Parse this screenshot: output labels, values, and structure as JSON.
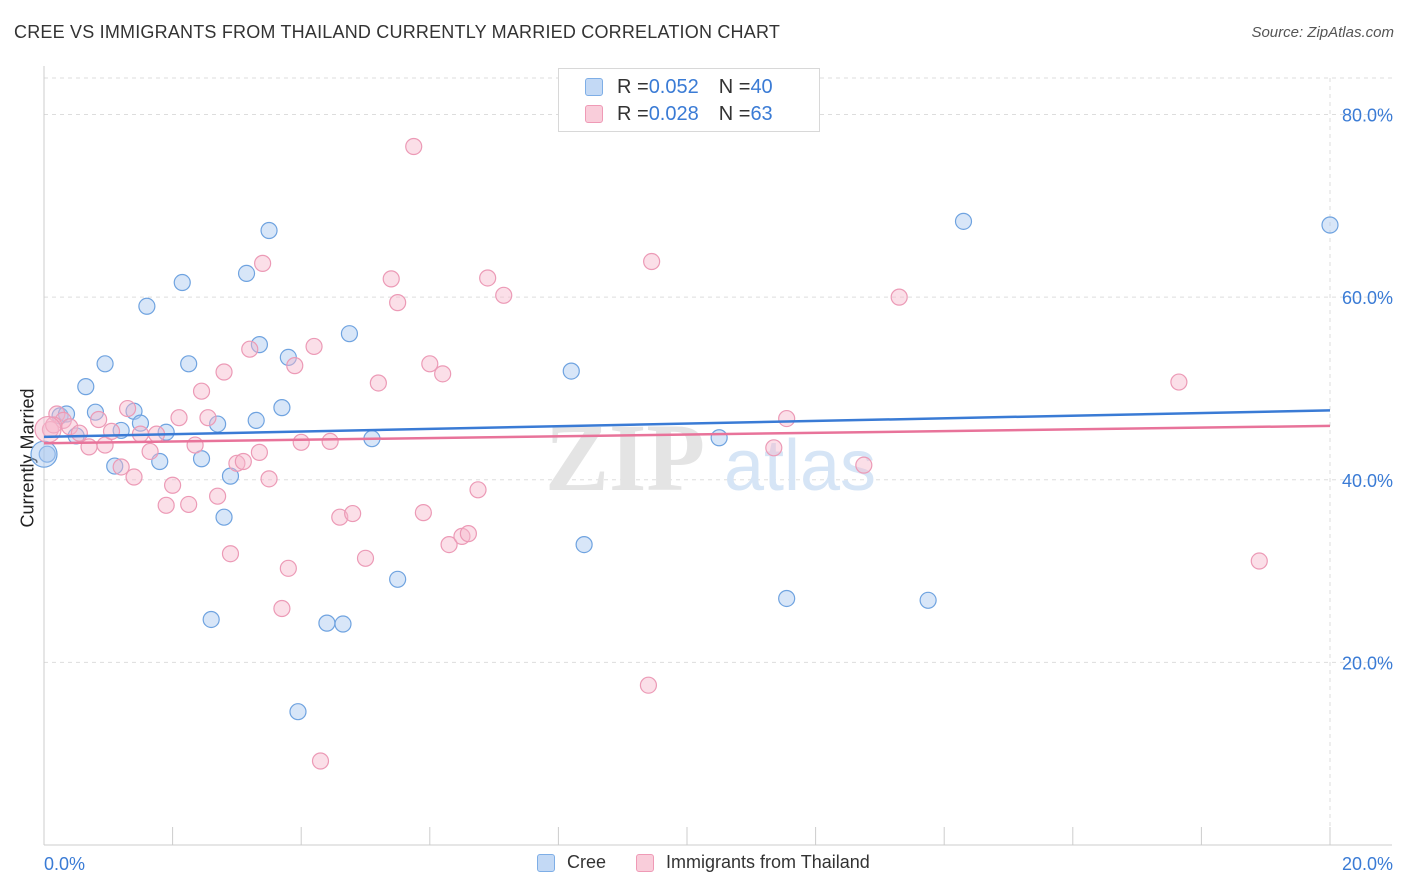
{
  "header": {
    "title": "CREE VS IMMIGRANTS FROM THAILAND CURRENTLY MARRIED CORRELATION CHART",
    "source": "Source: ZipAtlas.com"
  },
  "watermark": {
    "zip": "ZIP",
    "atlas": "atlas"
  },
  "legend_top": [
    {
      "r_label": "R = ",
      "r_value": "0.052",
      "n_label": "N = ",
      "n_value": "40",
      "color": "#a8c8f0"
    },
    {
      "r_label": "R = ",
      "r_value": "0.028",
      "n_label": "N = ",
      "n_value": "63",
      "color": "#f6b8cc"
    }
  ],
  "legend_bottom": [
    {
      "label": "Cree",
      "color": "#a8c8f0"
    },
    {
      "label": "Immigrants from Thailand",
      "color": "#f6b8cc"
    }
  ],
  "chart_data": {
    "type": "scatter",
    "title": "CREE VS IMMIGRANTS FROM THAILAND CURRENTLY MARRIED CORRELATION CHART",
    "ylabel": "Currently Married",
    "xlim": [
      0,
      20
    ],
    "ylim": [
      0,
      84
    ],
    "x_tick_labels": [
      {
        "value": 0,
        "label": "0.0%"
      },
      {
        "value": 20,
        "label": "20.0%"
      }
    ],
    "y_tick_labels": [
      {
        "value": 20,
        "label": "20.0%"
      },
      {
        "value": 40,
        "label": "40.0%"
      },
      {
        "value": 60,
        "label": "60.0%"
      },
      {
        "value": 80,
        "label": "80.0%"
      }
    ],
    "grid": true,
    "legend_position": "top-center",
    "colors": {
      "cree": "#3a7bd5",
      "thailand": "#e8739a",
      "cree_fill": "#a8c8f0",
      "thailand_fill": "#f6b8cc",
      "tick_label": "#3a7bd5"
    },
    "series": [
      {
        "name": "Cree",
        "r": 0.052,
        "n": 40,
        "trend": {
          "x": [
            0,
            20
          ],
          "y": [
            44.7,
            47.6
          ]
        },
        "points": [
          {
            "x": 0.05,
            "y": 42.8
          },
          {
            "x": 0.25,
            "y": 47.0
          },
          {
            "x": 0.35,
            "y": 47.2
          },
          {
            "x": 0.5,
            "y": 44.8
          },
          {
            "x": 0.65,
            "y": 50.2
          },
          {
            "x": 0.8,
            "y": 47.4
          },
          {
            "x": 0.95,
            "y": 52.7
          },
          {
            "x": 1.1,
            "y": 41.5
          },
          {
            "x": 1.2,
            "y": 45.4
          },
          {
            "x": 1.4,
            "y": 47.5
          },
          {
            "x": 1.5,
            "y": 46.2
          },
          {
            "x": 1.6,
            "y": 59.0
          },
          {
            "x": 1.8,
            "y": 42.0
          },
          {
            "x": 1.9,
            "y": 45.2
          },
          {
            "x": 2.15,
            "y": 61.6
          },
          {
            "x": 2.25,
            "y": 52.7
          },
          {
            "x": 2.45,
            "y": 42.3
          },
          {
            "x": 2.6,
            "y": 24.7
          },
          {
            "x": 2.7,
            "y": 46.1
          },
          {
            "x": 2.8,
            "y": 35.9
          },
          {
            "x": 2.9,
            "y": 40.4
          },
          {
            "x": 3.15,
            "y": 62.6
          },
          {
            "x": 3.3,
            "y": 46.5
          },
          {
            "x": 3.35,
            "y": 54.8
          },
          {
            "x": 3.5,
            "y": 67.3
          },
          {
            "x": 3.7,
            "y": 47.9
          },
          {
            "x": 3.8,
            "y": 53.4
          },
          {
            "x": 3.95,
            "y": 14.6
          },
          {
            "x": 4.4,
            "y": 24.3
          },
          {
            "x": 4.65,
            "y": 24.2
          },
          {
            "x": 4.75,
            "y": 56.0
          },
          {
            "x": 5.1,
            "y": 44.5
          },
          {
            "x": 5.5,
            "y": 29.1
          },
          {
            "x": 8.2,
            "y": 51.9
          },
          {
            "x": 8.4,
            "y": 32.9
          },
          {
            "x": 10.5,
            "y": 44.6
          },
          {
            "x": 11.55,
            "y": 27.0
          },
          {
            "x": 13.75,
            "y": 26.8
          },
          {
            "x": 14.3,
            "y": 68.3
          },
          {
            "x": 20.0,
            "y": 67.9
          }
        ]
      },
      {
        "name": "Immigrants from Thailand",
        "r": 0.028,
        "n": 63,
        "trend": {
          "x": [
            0,
            20
          ],
          "y": [
            44.0,
            45.9
          ]
        },
        "points": [
          {
            "x": 0.1,
            "y": 45.5
          },
          {
            "x": 0.2,
            "y": 47.2
          },
          {
            "x": 0.3,
            "y": 46.5
          },
          {
            "x": 0.4,
            "y": 45.8
          },
          {
            "x": 0.55,
            "y": 45.1
          },
          {
            "x": 0.7,
            "y": 43.6
          },
          {
            "x": 0.85,
            "y": 46.6
          },
          {
            "x": 0.95,
            "y": 43.8
          },
          {
            "x": 1.05,
            "y": 45.3
          },
          {
            "x": 1.2,
            "y": 41.4
          },
          {
            "x": 1.3,
            "y": 47.8
          },
          {
            "x": 1.4,
            "y": 40.3
          },
          {
            "x": 1.5,
            "y": 45.0
          },
          {
            "x": 1.65,
            "y": 43.1
          },
          {
            "x": 1.75,
            "y": 45.0
          },
          {
            "x": 1.9,
            "y": 37.2
          },
          {
            "x": 2.0,
            "y": 39.4
          },
          {
            "x": 2.1,
            "y": 46.8
          },
          {
            "x": 2.25,
            "y": 37.3
          },
          {
            "x": 2.35,
            "y": 43.8
          },
          {
            "x": 2.45,
            "y": 49.7
          },
          {
            "x": 2.55,
            "y": 46.8
          },
          {
            "x": 2.7,
            "y": 38.2
          },
          {
            "x": 2.8,
            "y": 51.8
          },
          {
            "x": 2.9,
            "y": 31.9
          },
          {
            "x": 3.0,
            "y": 41.8
          },
          {
            "x": 3.1,
            "y": 42.0
          },
          {
            "x": 3.2,
            "y": 54.3
          },
          {
            "x": 3.35,
            "y": 43.0
          },
          {
            "x": 3.4,
            "y": 63.7
          },
          {
            "x": 3.5,
            "y": 40.1
          },
          {
            "x": 3.7,
            "y": 25.9
          },
          {
            "x": 3.8,
            "y": 30.3
          },
          {
            "x": 3.9,
            "y": 52.5
          },
          {
            "x": 4.0,
            "y": 44.1
          },
          {
            "x": 4.2,
            "y": 54.6
          },
          {
            "x": 4.3,
            "y": 9.2
          },
          {
            "x": 4.45,
            "y": 44.2
          },
          {
            "x": 4.6,
            "y": 35.9
          },
          {
            "x": 4.8,
            "y": 36.3
          },
          {
            "x": 5.0,
            "y": 31.4
          },
          {
            "x": 5.2,
            "y": 50.6
          },
          {
            "x": 5.4,
            "y": 62.0
          },
          {
            "x": 5.5,
            "y": 59.4
          },
          {
            "x": 5.75,
            "y": 76.5
          },
          {
            "x": 5.9,
            "y": 36.4
          },
          {
            "x": 6.0,
            "y": 52.7
          },
          {
            "x": 6.2,
            "y": 51.6
          },
          {
            "x": 6.3,
            "y": 32.9
          },
          {
            "x": 6.5,
            "y": 33.8
          },
          {
            "x": 6.6,
            "y": 34.1
          },
          {
            "x": 6.75,
            "y": 38.9
          },
          {
            "x": 6.9,
            "y": 62.1
          },
          {
            "x": 7.15,
            "y": 60.2
          },
          {
            "x": 9.4,
            "y": 17.5
          },
          {
            "x": 9.45,
            "y": 63.9
          },
          {
            "x": 11.35,
            "y": 43.5
          },
          {
            "x": 11.55,
            "y": 46.7
          },
          {
            "x": 12.75,
            "y": 41.6
          },
          {
            "x": 13.3,
            "y": 60.0
          },
          {
            "x": 17.65,
            "y": 50.7
          },
          {
            "x": 18.9,
            "y": 31.1
          },
          {
            "x": 0.15,
            "y": 46.0
          }
        ]
      }
    ]
  }
}
